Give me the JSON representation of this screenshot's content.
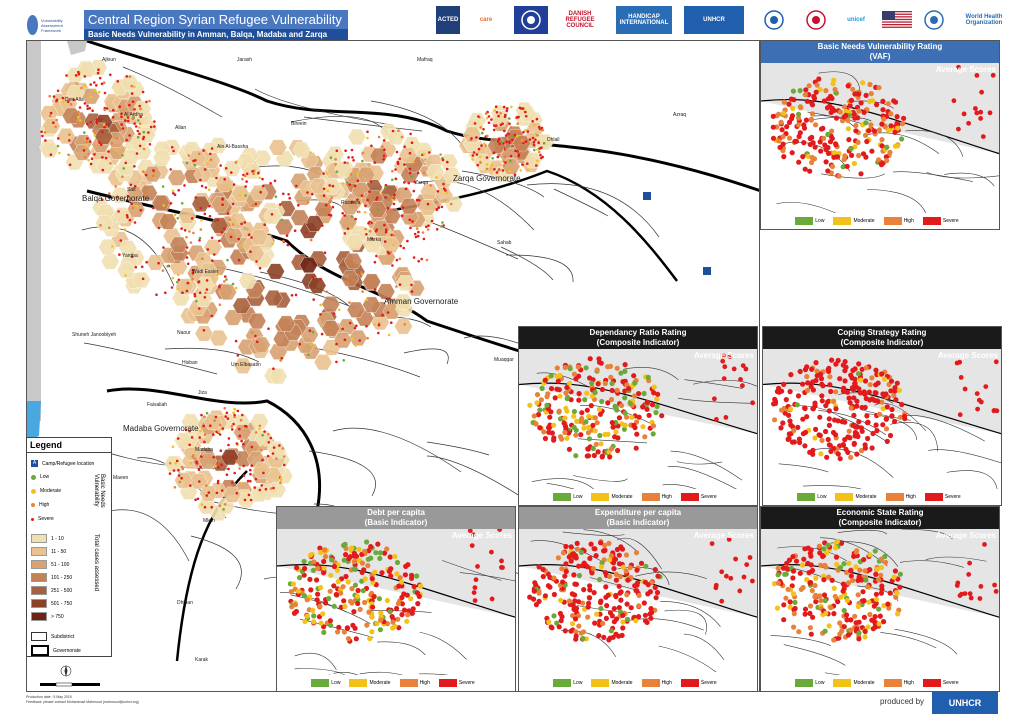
{
  "header": {
    "title": "Central Region Syrian Refugee Vulnerability",
    "subtitle": "Basic Needs Vulnerability in Amman, Balqa, Madaba and Zarqa",
    "logo_text": "Vulnerability Assessment Framework"
  },
  "partners": [
    "ACTED",
    "care",
    "",
    "DANISH REFUGEE COUNCIL",
    "HANDICAP INTERNATIONAL",
    "UNHCR",
    "",
    "",
    "unicef",
    "",
    "",
    "World Health Organization"
  ],
  "main_map": {
    "place_labels": [
      {
        "name": "Ajloun"
      },
      {
        "name": "Jarash"
      },
      {
        "name": "Mafraq"
      },
      {
        "name": "Deir Alla"
      },
      {
        "name": "Al Ardha"
      },
      {
        "name": "Allan"
      },
      {
        "name": "Bireein"
      },
      {
        "name": "Ain Al-Bassha"
      },
      {
        "name": "Dhlail"
      },
      {
        "name": "Salt"
      },
      {
        "name": "Zarqa"
      },
      {
        "name": "Balqa Governorate"
      },
      {
        "name": "Zarqa Governorate"
      },
      {
        "name": "Russeifa"
      },
      {
        "name": "Azraq"
      },
      {
        "name": "Yarqha"
      },
      {
        "name": "Wadi Essier"
      },
      {
        "name": "Marka"
      },
      {
        "name": "Sahab"
      },
      {
        "name": "Amman Governorate"
      },
      {
        "name": "Shuneh Janoobiyeh"
      },
      {
        "name": "Naour"
      },
      {
        "name": "Hisban"
      },
      {
        "name": "Um Elbasatin"
      },
      {
        "name": "Muaqqar"
      },
      {
        "name": "Jiza"
      },
      {
        "name": "Faisaliah"
      },
      {
        "name": "Madaba Governorate"
      },
      {
        "name": "Madaba"
      },
      {
        "name": "Maeen"
      },
      {
        "name": "Mleih"
      },
      {
        "name": "Dhiban"
      },
      {
        "name": "Karak"
      },
      {
        "name": "Azraq"
      }
    ]
  },
  "legend": {
    "title": "Legend",
    "camp_label": "Camp/Refugee location",
    "levels": [
      "Low",
      "Moderate",
      "High",
      "Severe"
    ],
    "levels_group_label": "Basic Needs Vulnerability",
    "cases_ranges": [
      "1 - 10",
      "11 - 50",
      "51 - 100",
      "101 - 250",
      "251 - 500",
      "501 - 750",
      "> 750"
    ],
    "cases_group_label": "Total cases assessed",
    "subdistrict_label": "Subdistrict",
    "governorate_label": "Governorate",
    "colors": {
      "low": "#6aaa3a",
      "moderate": "#f2c218",
      "high": "#e8823a",
      "severe": "#e31a1c"
    },
    "case_colors": [
      "#f1dfb0",
      "#e9c28f",
      "#d8a272",
      "#c48257",
      "#a8613e",
      "#8c4227",
      "#6e2414"
    ]
  },
  "panels": [
    {
      "id": "vaf",
      "title_line1": "Basic Needs Vulnerability Rating",
      "title_line2": "(VAF)",
      "avg_label": "Average Scores",
      "head_style": "blue"
    },
    {
      "id": "dependency",
      "title_line1": "Dependancy Ratio Rating",
      "title_line2": "(Composite Indicator)",
      "avg_label": "Average Scores",
      "head_style": "dark"
    },
    {
      "id": "coping",
      "title_line1": "Coping Strategy Rating",
      "title_line2": "(Composite Indicator)",
      "avg_label": "Average Scores",
      "head_style": "dark"
    },
    {
      "id": "debt",
      "title_line1": "Debt per capita",
      "title_line2": "(Basic Indicator)",
      "avg_label": "Average Scores",
      "head_style": "grey"
    },
    {
      "id": "expenditure",
      "title_line1": "Expenditure per capita",
      "title_line2": "(Basic Indicator)",
      "avg_label": "Average Scores",
      "head_style": "grey"
    },
    {
      "id": "economic",
      "title_line1": "Economic State Rating",
      "title_line2": "(Composite Indicator)",
      "avg_label": "Average Scores",
      "head_style": "dark"
    }
  ],
  "panel_legend": [
    "Low",
    "Moderate",
    "High",
    "Severe"
  ],
  "footer": {
    "note_line1": "Production date : 5 May 2015",
    "note_line2": "Feedback: please contact Mohammad Mahmoud (mahmoud@unhcr.org)",
    "produced_by": "produced by",
    "agency": "UNHCR"
  }
}
